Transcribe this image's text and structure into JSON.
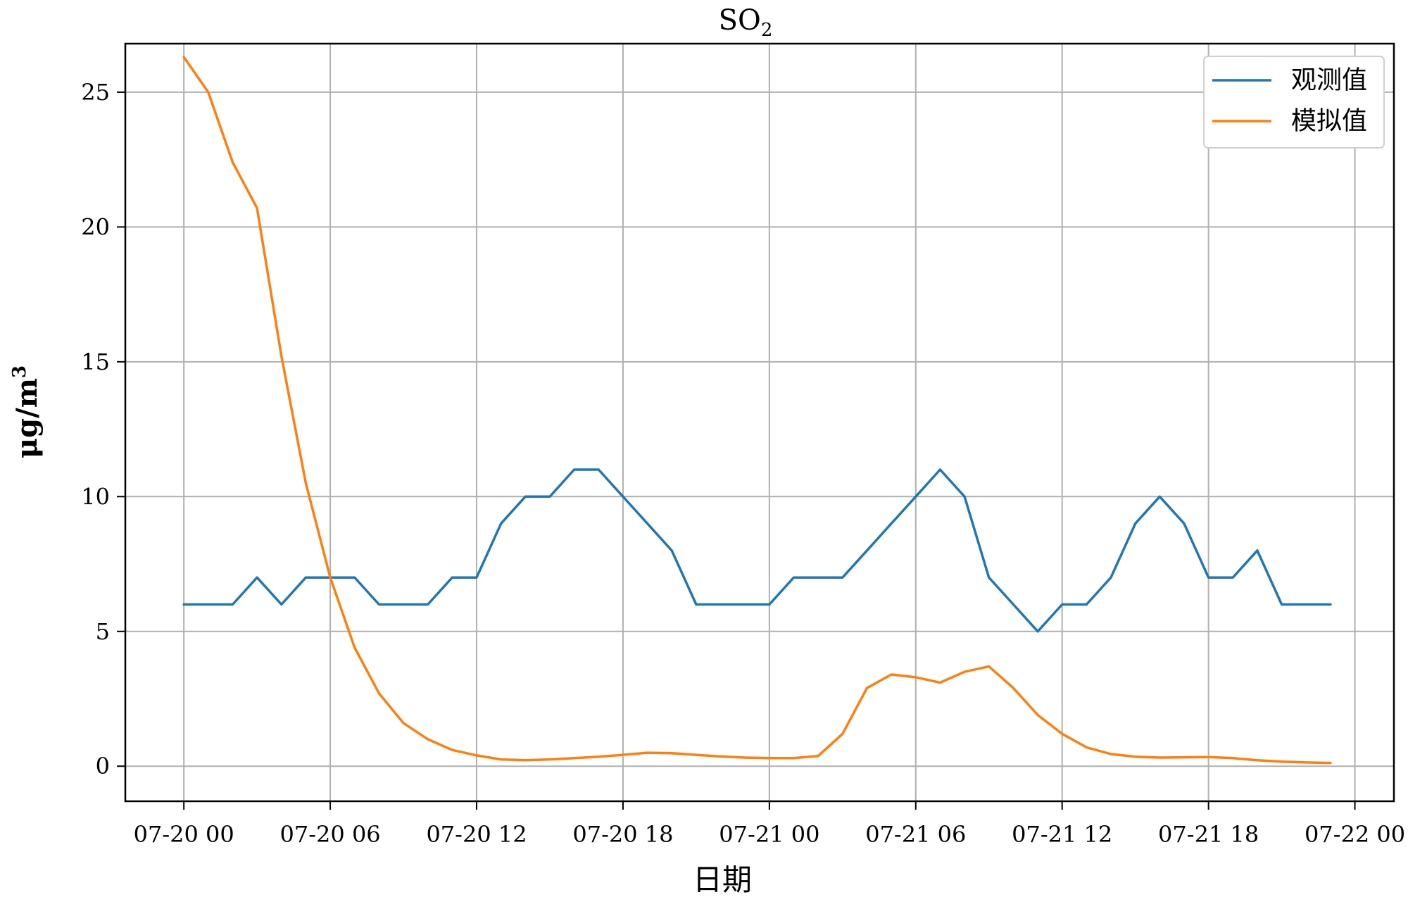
{
  "chart_data": {
    "type": "line",
    "title": "SO",
    "title_subscript": "2",
    "xlabel": "日期",
    "ylabel": "μg/m",
    "ylabel_superscript": "3",
    "x_ticks": [
      "07-20 00",
      "07-20 06",
      "07-20 12",
      "07-20 18",
      "07-21 00",
      "07-21 06",
      "07-21 12",
      "07-21 18",
      "07-22 00"
    ],
    "x_unit": "hours since 07-20 00",
    "xlim": [
      -2.4,
      49.6
    ],
    "y_ticks": [
      0,
      5,
      10,
      15,
      20,
      25
    ],
    "ylim": [
      -1.3,
      26.8
    ],
    "grid": true,
    "legend_position": "top-right",
    "series": [
      {
        "name": "观测值",
        "color": "#1f77b4",
        "x": [
          0,
          1,
          2,
          3,
          4,
          5,
          6,
          7,
          8,
          9,
          10,
          11,
          12,
          13,
          14,
          15,
          16,
          17,
          18,
          19,
          20,
          21,
          22,
          23,
          24,
          25,
          26,
          27,
          28,
          29,
          30,
          31,
          32,
          33,
          34,
          35,
          36,
          37,
          38,
          39,
          40,
          41,
          42,
          43,
          44,
          45,
          46,
          47
        ],
        "values": [
          6,
          6,
          6,
          7,
          6,
          7,
          7,
          7,
          6,
          6,
          6,
          7,
          7,
          9,
          10,
          10,
          11,
          11,
          10,
          9,
          8,
          6,
          6,
          6,
          6,
          7,
          7,
          7,
          8,
          9,
          10,
          11,
          10,
          7,
          6,
          5,
          6,
          6,
          7,
          9,
          10,
          9,
          7,
          7,
          8,
          6,
          6,
          6
        ]
      },
      {
        "name": "模拟值",
        "color": "#ff7f0e",
        "x": [
          0,
          1,
          2,
          3,
          4,
          5,
          6,
          7,
          8,
          9,
          10,
          11,
          12,
          13,
          14,
          15,
          16,
          17,
          18,
          19,
          20,
          21,
          22,
          23,
          24,
          25,
          26,
          27,
          28,
          29,
          30,
          31,
          32,
          33,
          34,
          35,
          36,
          37,
          38,
          39,
          40,
          41,
          42,
          43,
          44,
          45,
          46,
          47
        ],
        "values": [
          26.3,
          25,
          22.4,
          20.7,
          15.2,
          10.5,
          7,
          4.4,
          2.7,
          1.6,
          1,
          0.6,
          0.4,
          0.25,
          0.22,
          0.25,
          0.3,
          0.35,
          0.42,
          0.5,
          0.48,
          0.42,
          0.36,
          0.32,
          0.3,
          0.3,
          0.38,
          1.2,
          2.9,
          3.4,
          3.3,
          3.1,
          3.5,
          3.7,
          2.9,
          1.9,
          1.2,
          0.7,
          0.45,
          0.35,
          0.32,
          0.33,
          0.34,
          0.3,
          0.22,
          0.17,
          0.14,
          0.12
        ]
      }
    ]
  }
}
